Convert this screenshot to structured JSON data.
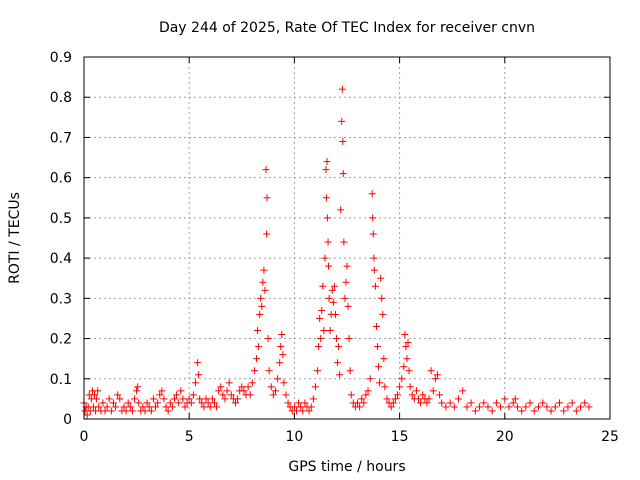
{
  "chart_data": {
    "type": "scatter",
    "title": "Day 244 of 2025, Rate Of TEC Index for receiver cnvn",
    "xlabel": "GPS time / hours",
    "ylabel": "ROTI / TECUs",
    "xlim": [
      0,
      25
    ],
    "ylim": [
      0,
      0.9
    ],
    "xticks": [
      0,
      5,
      10,
      15,
      20,
      25
    ],
    "yticks": [
      0,
      0.1,
      0.2,
      0.3,
      0.4,
      0.5,
      0.6,
      0.7,
      0.8,
      0.9
    ],
    "xtick_labels": [
      "0",
      "5",
      "10",
      "15",
      "20",
      "25"
    ],
    "ytick_labels": [
      "0",
      "0.1",
      "0.2",
      "0.3",
      "0.4",
      "0.5",
      "0.6",
      "0.7",
      "0.8",
      "0.9"
    ],
    "grid": true,
    "marker": "+",
    "color": "#ff0000",
    "series": [
      {
        "points": [
          [
            0.0,
            0.04
          ],
          [
            0.05,
            0.02
          ],
          [
            0.1,
            0.03
          ],
          [
            0.15,
            0.01
          ],
          [
            0.2,
            0.03
          ],
          [
            0.25,
            0.06
          ],
          [
            0.3,
            0.02
          ],
          [
            0.35,
            0.05
          ],
          [
            0.4,
            0.07
          ],
          [
            0.45,
            0.03
          ],
          [
            0.5,
            0.06
          ],
          [
            0.55,
            0.02
          ],
          [
            0.6,
            0.05
          ],
          [
            0.65,
            0.07
          ],
          [
            0.7,
            0.03
          ],
          [
            0.8,
            0.02
          ],
          [
            0.9,
            0.04
          ],
          [
            1.0,
            0.02
          ],
          [
            1.1,
            0.03
          ],
          [
            1.2,
            0.05
          ],
          [
            1.3,
            0.02
          ],
          [
            1.4,
            0.04
          ],
          [
            1.5,
            0.03
          ],
          [
            1.6,
            0.06
          ],
          [
            1.7,
            0.05
          ],
          [
            1.8,
            0.02
          ],
          [
            1.9,
            0.03
          ],
          [
            2.0,
            0.02
          ],
          [
            2.1,
            0.04
          ],
          [
            2.2,
            0.03
          ],
          [
            2.3,
            0.02
          ],
          [
            2.4,
            0.05
          ],
          [
            2.5,
            0.07
          ],
          [
            2.55,
            0.08
          ],
          [
            2.6,
            0.04
          ],
          [
            2.7,
            0.02
          ],
          [
            2.8,
            0.03
          ],
          [
            2.9,
            0.02
          ],
          [
            3.0,
            0.04
          ],
          [
            3.1,
            0.03
          ],
          [
            3.2,
            0.02
          ],
          [
            3.3,
            0.05
          ],
          [
            3.4,
            0.03
          ],
          [
            3.5,
            0.04
          ],
          [
            3.6,
            0.06
          ],
          [
            3.7,
            0.07
          ],
          [
            3.8,
            0.05
          ],
          [
            3.9,
            0.03
          ],
          [
            4.0,
            0.02
          ],
          [
            4.1,
            0.04
          ],
          [
            4.2,
            0.03
          ],
          [
            4.3,
            0.05
          ],
          [
            4.4,
            0.06
          ],
          [
            4.5,
            0.04
          ],
          [
            4.6,
            0.07
          ],
          [
            4.7,
            0.05
          ],
          [
            4.8,
            0.03
          ],
          [
            4.9,
            0.04
          ],
          [
            5.0,
            0.05
          ],
          [
            5.1,
            0.04
          ],
          [
            5.2,
            0.06
          ],
          [
            5.3,
            0.09
          ],
          [
            5.4,
            0.14
          ],
          [
            5.45,
            0.11
          ],
          [
            5.5,
            0.05
          ],
          [
            5.6,
            0.04
          ],
          [
            5.7,
            0.03
          ],
          [
            5.8,
            0.05
          ],
          [
            5.9,
            0.04
          ],
          [
            6.0,
            0.03
          ],
          [
            6.1,
            0.05
          ],
          [
            6.2,
            0.04
          ],
          [
            6.3,
            0.03
          ],
          [
            6.4,
            0.07
          ],
          [
            6.5,
            0.08
          ],
          [
            6.6,
            0.06
          ],
          [
            6.7,
            0.05
          ],
          [
            6.8,
            0.07
          ],
          [
            6.9,
            0.09
          ],
          [
            7.0,
            0.06
          ],
          [
            7.1,
            0.05
          ],
          [
            7.2,
            0.04
          ],
          [
            7.3,
            0.05
          ],
          [
            7.4,
            0.07
          ],
          [
            7.5,
            0.08
          ],
          [
            7.6,
            0.07
          ],
          [
            7.7,
            0.06
          ],
          [
            7.8,
            0.08
          ],
          [
            7.9,
            0.06
          ],
          [
            8.0,
            0.09
          ],
          [
            8.1,
            0.12
          ],
          [
            8.2,
            0.15
          ],
          [
            8.25,
            0.22
          ],
          [
            8.3,
            0.18
          ],
          [
            8.35,
            0.26
          ],
          [
            8.4,
            0.3
          ],
          [
            8.45,
            0.28
          ],
          [
            8.5,
            0.34
          ],
          [
            8.55,
            0.37
          ],
          [
            8.6,
            0.32
          ],
          [
            8.65,
            0.62
          ],
          [
            8.7,
            0.55
          ],
          [
            8.68,
            0.46
          ],
          [
            8.75,
            0.2
          ],
          [
            8.8,
            0.12
          ],
          [
            8.9,
            0.08
          ],
          [
            9.0,
            0.06
          ],
          [
            9.1,
            0.07
          ],
          [
            9.2,
            0.1
          ],
          [
            9.3,
            0.14
          ],
          [
            9.35,
            0.18
          ],
          [
            9.4,
            0.21
          ],
          [
            9.45,
            0.16
          ],
          [
            9.5,
            0.09
          ],
          [
            9.6,
            0.06
          ],
          [
            9.7,
            0.04
          ],
          [
            9.8,
            0.03
          ],
          [
            9.9,
            0.02
          ],
          [
            10.0,
            0.03
          ],
          [
            10.1,
            0.02
          ],
          [
            10.2,
            0.04
          ],
          [
            10.3,
            0.03
          ],
          [
            10.4,
            0.02
          ],
          [
            10.5,
            0.04
          ],
          [
            10.6,
            0.03
          ],
          [
            10.7,
            0.02
          ],
          [
            10.8,
            0.03
          ],
          [
            10.9,
            0.05
          ],
          [
            11.0,
            0.08
          ],
          [
            11.1,
            0.12
          ],
          [
            11.15,
            0.18
          ],
          [
            11.2,
            0.25
          ],
          [
            11.25,
            0.2
          ],
          [
            11.3,
            0.27
          ],
          [
            11.35,
            0.33
          ],
          [
            11.4,
            0.22
          ],
          [
            11.45,
            0.4
          ],
          [
            11.5,
            0.62
          ],
          [
            11.55,
            0.64
          ],
          [
            11.52,
            0.55
          ],
          [
            11.57,
            0.5
          ],
          [
            11.6,
            0.44
          ],
          [
            11.62,
            0.38
          ],
          [
            11.65,
            0.3
          ],
          [
            11.7,
            0.22
          ],
          [
            11.75,
            0.26
          ],
          [
            11.8,
            0.32
          ],
          [
            11.85,
            0.29
          ],
          [
            11.9,
            0.33
          ],
          [
            11.95,
            0.26
          ],
          [
            12.0,
            0.2
          ],
          [
            12.05,
            0.14
          ],
          [
            12.1,
            0.18
          ],
          [
            12.15,
            0.11
          ],
          [
            12.2,
            0.52
          ],
          [
            12.25,
            0.74
          ],
          [
            12.28,
            0.82
          ],
          [
            12.3,
            0.69
          ],
          [
            12.32,
            0.61
          ],
          [
            12.35,
            0.44
          ],
          [
            12.4,
            0.3
          ],
          [
            12.45,
            0.34
          ],
          [
            12.5,
            0.38
          ],
          [
            12.55,
            0.28
          ],
          [
            12.6,
            0.2
          ],
          [
            12.65,
            0.12
          ],
          [
            12.7,
            0.06
          ],
          [
            12.8,
            0.04
          ],
          [
            12.9,
            0.03
          ],
          [
            13.0,
            0.04
          ],
          [
            13.1,
            0.03
          ],
          [
            13.2,
            0.05
          ],
          [
            13.3,
            0.04
          ],
          [
            13.4,
            0.06
          ],
          [
            13.5,
            0.07
          ],
          [
            13.6,
            0.1
          ],
          [
            13.7,
            0.56
          ],
          [
            13.72,
            0.5
          ],
          [
            13.75,
            0.46
          ],
          [
            13.78,
            0.4
          ],
          [
            13.8,
            0.37
          ],
          [
            13.85,
            0.33
          ],
          [
            13.9,
            0.23
          ],
          [
            13.95,
            0.18
          ],
          [
            14.0,
            0.13
          ],
          [
            14.05,
            0.09
          ],
          [
            14.1,
            0.35
          ],
          [
            14.15,
            0.3
          ],
          [
            14.2,
            0.26
          ],
          [
            14.25,
            0.15
          ],
          [
            14.3,
            0.08
          ],
          [
            14.4,
            0.05
          ],
          [
            14.5,
            0.04
          ],
          [
            14.6,
            0.03
          ],
          [
            14.7,
            0.04
          ],
          [
            14.8,
            0.05
          ],
          [
            14.9,
            0.06
          ],
          [
            15.0,
            0.08
          ],
          [
            15.1,
            0.1
          ],
          [
            15.2,
            0.13
          ],
          [
            15.25,
            0.21
          ],
          [
            15.3,
            0.18
          ],
          [
            15.35,
            0.15
          ],
          [
            15.4,
            0.19
          ],
          [
            15.45,
            0.12
          ],
          [
            15.5,
            0.08
          ],
          [
            15.6,
            0.06
          ],
          [
            15.7,
            0.05
          ],
          [
            15.8,
            0.07
          ],
          [
            15.9,
            0.05
          ],
          [
            16.0,
            0.04
          ],
          [
            16.1,
            0.06
          ],
          [
            16.2,
            0.05
          ],
          [
            16.3,
            0.04
          ],
          [
            16.4,
            0.05
          ],
          [
            16.5,
            0.12
          ],
          [
            16.6,
            0.07
          ],
          [
            16.7,
            0.1
          ],
          [
            16.8,
            0.11
          ],
          [
            16.9,
            0.06
          ],
          [
            17.0,
            0.04
          ],
          [
            17.2,
            0.03
          ],
          [
            17.4,
            0.04
          ],
          [
            17.6,
            0.03
          ],
          [
            17.8,
            0.05
          ],
          [
            18.0,
            0.07
          ],
          [
            18.2,
            0.03
          ],
          [
            18.4,
            0.04
          ],
          [
            18.6,
            0.02
          ],
          [
            18.8,
            0.03
          ],
          [
            19.0,
            0.04
          ],
          [
            19.2,
            0.03
          ],
          [
            19.4,
            0.02
          ],
          [
            19.6,
            0.04
          ],
          [
            19.8,
            0.03
          ],
          [
            20.0,
            0.05
          ],
          [
            20.2,
            0.03
          ],
          [
            20.4,
            0.04
          ],
          [
            20.5,
            0.05
          ],
          [
            20.6,
            0.03
          ],
          [
            20.8,
            0.02
          ],
          [
            21.0,
            0.03
          ],
          [
            21.2,
            0.04
          ],
          [
            21.4,
            0.02
          ],
          [
            21.6,
            0.03
          ],
          [
            21.8,
            0.04
          ],
          [
            22.0,
            0.03
          ],
          [
            22.2,
            0.02
          ],
          [
            22.4,
            0.03
          ],
          [
            22.6,
            0.04
          ],
          [
            22.8,
            0.02
          ],
          [
            23.0,
            0.03
          ],
          [
            23.2,
            0.04
          ],
          [
            23.4,
            0.02
          ],
          [
            23.6,
            0.03
          ],
          [
            23.8,
            0.04
          ],
          [
            24.0,
            0.03
          ]
        ]
      }
    ]
  }
}
